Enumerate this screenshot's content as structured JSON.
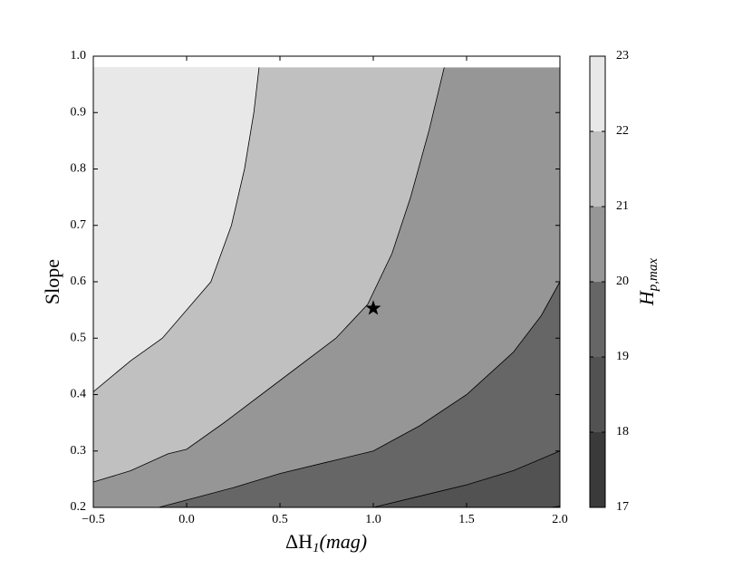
{
  "chart_data": {
    "type": "contour",
    "xlabel": [
      "ΔH",
      "1",
      "(mag)"
    ],
    "ylabel": "Slope",
    "colorbar_label": [
      "H",
      "p,max"
    ],
    "xlim": [
      -0.5,
      2.0
    ],
    "ylim": [
      0.2,
      1.0
    ],
    "xticks": [
      {
        "value": -0.5,
        "label": "−0.5"
      },
      {
        "value": 0,
        "label": "0.0"
      },
      0.5,
      {
        "value": 1,
        "label": "1.0"
      },
      1.5,
      {
        "value": 2,
        "label": "2.0"
      }
    ],
    "yticks": [
      0.2,
      0.3,
      0.4,
      0.5,
      0.6,
      0.7,
      0.8,
      0.9,
      {
        "value": 1,
        "label": "1.0"
      }
    ],
    "clim": [
      17,
      23
    ],
    "cticks": [
      17,
      18,
      19,
      20,
      21,
      22,
      23
    ],
    "band_colors": [
      "#3a3a3a",
      "#525252",
      "#666666",
      "#969696",
      "#c0c0c0",
      "#e8e8e8"
    ],
    "contours": [
      {
        "level": 18,
        "x": [
          1.95,
          2.0
        ],
        "y": [
          0.2,
          0.202
        ]
      },
      {
        "level": 19,
        "x": [
          1.0,
          1.25,
          1.5,
          1.75,
          2.0
        ],
        "y": [
          0.2,
          0.22,
          0.24,
          0.265,
          0.3
        ]
      },
      {
        "level": 20,
        "x": [
          -0.15,
          0.0,
          0.25,
          0.5,
          0.75,
          1.0,
          1.25,
          1.5,
          1.75,
          1.9,
          2.0
        ],
        "y": [
          0.2,
          0.213,
          0.235,
          0.26,
          0.28,
          0.3,
          0.345,
          0.4,
          0.475,
          0.54,
          0.6
        ]
      },
      {
        "level": 21,
        "x": [
          -0.5,
          -0.3,
          -0.1,
          0.0,
          0.2,
          0.4,
          0.6,
          0.8,
          0.97,
          1.1,
          1.2,
          1.3,
          1.38
        ],
        "y": [
          0.245,
          0.265,
          0.295,
          0.303,
          0.35,
          0.4,
          0.45,
          0.5,
          0.56,
          0.65,
          0.75,
          0.87,
          0.98
        ]
      },
      {
        "level": 22,
        "x": [
          -0.5,
          -0.3,
          -0.13,
          0.0,
          0.13,
          0.24,
          0.31,
          0.36,
          0.388
        ],
        "y": [
          0.405,
          0.46,
          0.5,
          0.55,
          0.6,
          0.7,
          0.8,
          0.9,
          0.98
        ]
      }
    ],
    "marker": {
      "x": 1.0,
      "y": 0.553
    }
  }
}
